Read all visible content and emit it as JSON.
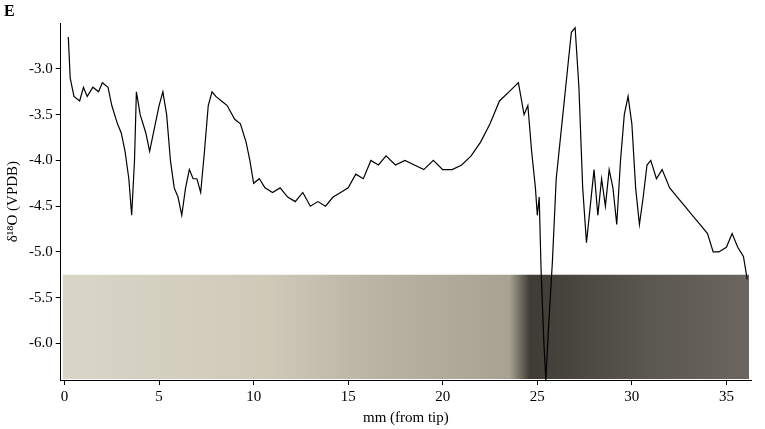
{
  "chart_data": {
    "type": "line",
    "title": "E",
    "x_label": "mm (from tip)",
    "y_label": "δ¹⁸O (VPDB)",
    "x": [
      0.2,
      0.3,
      0.5,
      0.8,
      1.0,
      1.2,
      1.5,
      1.8,
      2.0,
      2.3,
      2.5,
      2.8,
      3.0,
      3.2,
      3.4,
      3.55,
      3.7,
      3.8,
      4.0,
      4.3,
      4.5,
      4.8,
      5.0,
      5.2,
      5.4,
      5.6,
      5.8,
      6.0,
      6.2,
      6.4,
      6.6,
      6.8,
      7.0,
      7.2,
      7.4,
      7.6,
      7.8,
      8.0,
      8.3,
      8.6,
      9.0,
      9.3,
      9.6,
      9.8,
      10.0,
      10.3,
      10.6,
      11.0,
      11.4,
      11.8,
      12.2,
      12.6,
      13.0,
      13.4,
      13.8,
      14.2,
      14.6,
      15.0,
      15.4,
      15.8,
      16.2,
      16.6,
      17.0,
      17.5,
      18.0,
      18.5,
      19.0,
      19.5,
      20.0,
      20.5,
      21.0,
      21.5,
      22.0,
      22.5,
      23.0,
      23.5,
      24.0,
      24.3,
      24.5,
      24.7,
      24.9,
      25.0,
      25.1,
      25.2,
      25.35,
      25.45,
      25.6,
      25.8,
      26.0,
      26.3,
      26.6,
      26.8,
      27.0,
      27.2,
      27.4,
      27.6,
      27.8,
      28.0,
      28.2,
      28.4,
      28.6,
      28.8,
      29.0,
      29.2,
      29.4,
      29.6,
      29.8,
      30.0,
      30.2,
      30.4,
      30.6,
      30.8,
      31.0,
      31.3,
      31.6,
      32.0,
      32.4,
      32.8,
      33.2,
      33.6,
      34.0,
      34.3,
      34.6,
      35.0,
      35.3,
      35.6,
      35.9,
      36.1
    ],
    "values": [
      -2.65,
      -3.1,
      -3.3,
      -3.35,
      -3.2,
      -3.3,
      -3.2,
      -3.25,
      -3.15,
      -3.2,
      -3.4,
      -3.6,
      -3.7,
      -3.9,
      -4.2,
      -4.6,
      -4.0,
      -3.25,
      -3.5,
      -3.7,
      -3.9,
      -3.6,
      -3.4,
      -3.25,
      -3.5,
      -4.0,
      -4.3,
      -4.4,
      -4.6,
      -4.3,
      -4.1,
      -4.2,
      -4.2,
      -4.35,
      -3.9,
      -3.4,
      -3.25,
      -3.3,
      -3.35,
      -3.4,
      -3.55,
      -3.6,
      -3.8,
      -4.0,
      -4.25,
      -4.2,
      -4.3,
      -4.35,
      -4.3,
      -4.4,
      -4.45,
      -4.35,
      -4.5,
      -4.45,
      -4.5,
      -4.4,
      -4.35,
      -4.3,
      -4.15,
      -4.2,
      -4.0,
      -4.05,
      -3.95,
      -4.05,
      -4.0,
      -4.05,
      -4.1,
      -4.0,
      -4.1,
      -4.1,
      -4.05,
      -3.95,
      -3.8,
      -3.6,
      -3.35,
      -3.25,
      -3.15,
      -3.5,
      -3.4,
      -3.9,
      -4.3,
      -4.6,
      -4.4,
      -5.2,
      -6.0,
      -6.4,
      -5.8,
      -5.1,
      -4.2,
      -3.6,
      -3.0,
      -2.6,
      -2.55,
      -3.2,
      -4.3,
      -4.9,
      -4.5,
      -4.1,
      -4.6,
      -4.2,
      -4.5,
      -4.1,
      -4.3,
      -4.7,
      -4.0,
      -3.5,
      -3.3,
      -3.6,
      -4.3,
      -4.7,
      -4.4,
      -4.05,
      -4.0,
      -4.2,
      -4.1,
      -4.3,
      -4.4,
      -4.5,
      -4.6,
      -4.7,
      -4.8,
      -5.0,
      -5.0,
      -4.95,
      -4.8,
      -4.95,
      -5.05,
      -5.3
    ],
    "color": "#000000",
    "xlim": [
      -0.2,
      36.3
    ],
    "xticks": [
      0,
      5,
      10,
      15,
      20,
      25,
      30,
      35
    ],
    "ylim": [
      -6.4,
      -2.5
    ],
    "yticks": [
      {
        "value": -6,
        "label": "-6.0"
      },
      -5.5,
      {
        "value": -5,
        "label": "-5.0"
      },
      -4.5,
      {
        "value": -4,
        "label": "-4.0"
      },
      -3.5,
      {
        "value": -3,
        "label": "-3.0"
      }
    ],
    "grid": false
  }
}
